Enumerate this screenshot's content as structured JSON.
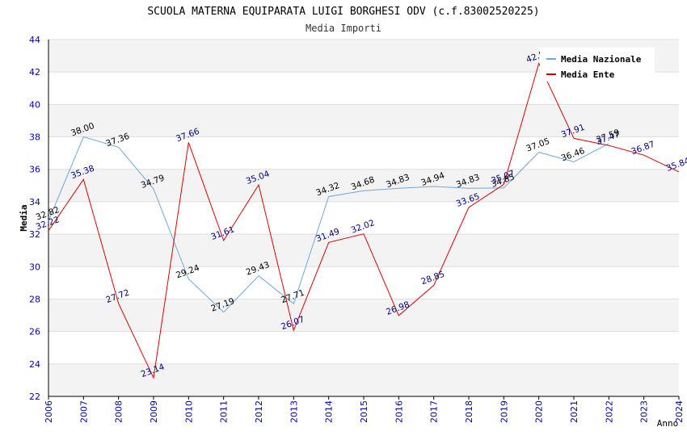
{
  "chart_data": {
    "type": "line",
    "title": "SCUOLA MATERNA EQUIPARATA LUIGI BORGHESI ODV (c.f.83002520225)",
    "subtitle": "Media Importi",
    "xlabel": "Anno",
    "ylabel": "Media",
    "ylim": [
      22,
      44
    ],
    "yticks": [
      22,
      24,
      26,
      28,
      30,
      32,
      34,
      36,
      38,
      40,
      42,
      44
    ],
    "x": [
      "2006",
      "2007",
      "2008",
      "2009",
      "2010",
      "2011",
      "2012",
      "2013",
      "2014",
      "2015",
      "2016",
      "2017",
      "2018",
      "2019",
      "2020",
      "2021",
      "2022",
      "2023",
      "2024"
    ],
    "grid": true,
    "legend_position": "top-right",
    "series": [
      {
        "name": "Media Nazionale",
        "color": "#6ea8dc",
        "label_color": "#000000",
        "values": [
          32.82,
          38.0,
          37.36,
          34.79,
          29.24,
          27.19,
          29.43,
          27.71,
          34.32,
          34.68,
          34.83,
          34.94,
          34.83,
          34.85,
          37.05,
          36.46,
          37.59,
          null,
          null
        ],
        "labels": [
          "32.82",
          "38.00",
          "37.36",
          "34.79",
          "29.24",
          "27.19",
          "29.43",
          "27.71",
          "34.32",
          "34.68",
          "34.83",
          "34.94",
          "34.83",
          "34.85",
          "37.05",
          "36.46",
          "37.59",
          "",
          ""
        ]
      },
      {
        "name": "Media Ente",
        "color": "#dd0000",
        "label_color": "#000080",
        "values": [
          32.22,
          35.38,
          27.72,
          23.14,
          37.66,
          31.61,
          35.04,
          26.07,
          31.49,
          32.02,
          26.98,
          28.85,
          33.65,
          35.07,
          42.53,
          37.91,
          37.47,
          36.87,
          35.84
        ],
        "labels": [
          "32.22",
          "35.38",
          "27.72",
          "23.14",
          "37.66",
          "31.61",
          "35.04",
          "26.07",
          "31.49",
          "32.02",
          "26.98",
          "28.85",
          "33.65",
          "35.07",
          "42.53",
          "37.91",
          "37.47",
          "36.87",
          "35.84"
        ]
      }
    ]
  }
}
